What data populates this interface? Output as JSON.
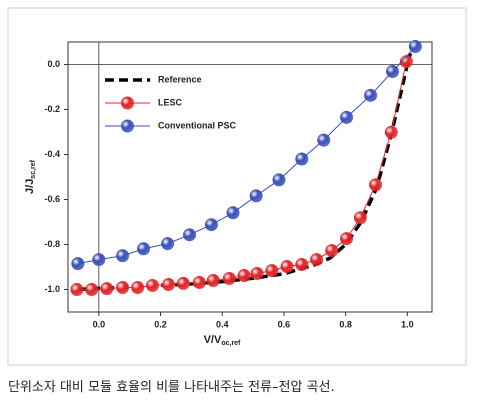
{
  "chart_data": {
    "type": "line",
    "xlabel": {
      "main": "V/V",
      "sub": "oc,ref"
    },
    "ylabel": {
      "main": "J/J",
      "sub": "sc,ref"
    },
    "xlim": [
      -0.1,
      1.08
    ],
    "ylim": [
      -1.1,
      0.1
    ],
    "xticks": [
      {
        "value": 0,
        "label": "0.0"
      },
      0.2,
      0.4,
      0.6,
      0.8,
      {
        "value": 1,
        "label": "1.0"
      }
    ],
    "yticks": [
      {
        "value": 0,
        "label": "0.0"
      },
      -0.2,
      -0.4,
      -0.6,
      -0.8,
      {
        "value": -1,
        "label": "-1.0"
      }
    ],
    "zero_lines": true,
    "legend": "upper left",
    "series": [
      {
        "name": "Reference",
        "color": "#000000",
        "style": "dashed",
        "x": [
          -0.07,
          0,
          0.1,
          0.2,
          0.3,
          0.4,
          0.5,
          0.6,
          0.7,
          0.75,
          0.8,
          0.85,
          0.9,
          0.95,
          1.0,
          1.01
        ],
        "values": [
          -1.0,
          -0.995,
          -0.99,
          -0.982,
          -0.975,
          -0.965,
          -0.95,
          -0.93,
          -0.89,
          -0.86,
          -0.8,
          -0.7,
          -0.55,
          -0.3,
          0.0,
          0.05
        ]
      },
      {
        "name": "LESC",
        "color": "#e0262a",
        "style": "marker",
        "x": [
          -0.071,
          -0.023,
          0.026,
          0.077,
          0.126,
          0.174,
          0.226,
          0.274,
          0.326,
          0.371,
          0.423,
          0.471,
          0.513,
          0.561,
          0.61,
          0.658,
          0.706,
          0.755,
          0.803,
          0.848,
          0.897,
          0.948,
          0.997
        ],
        "values": [
          -1.0,
          -1.0,
          -0.996,
          -0.991,
          -0.991,
          -0.982,
          -0.978,
          -0.973,
          -0.969,
          -0.96,
          -0.951,
          -0.938,
          -0.929,
          -0.916,
          -0.898,
          -0.889,
          -0.867,
          -0.827,
          -0.774,
          -0.681,
          -0.535,
          -0.301,
          0.013
        ]
      },
      {
        "name": "Conventional PSC",
        "color": "#3a50b8",
        "style": "marker",
        "x": [
          -0.068,
          0,
          0.077,
          0.145,
          0.223,
          0.294,
          0.365,
          0.435,
          0.51,
          0.584,
          0.658,
          0.729,
          0.803,
          0.881,
          0.952,
          1.026
        ],
        "values": [
          -0.885,
          -0.867,
          -0.85,
          -0.819,
          -0.796,
          -0.757,
          -0.712,
          -0.659,
          -0.584,
          -0.513,
          -0.42,
          -0.336,
          -0.235,
          -0.137,
          -0.031,
          0.08
        ]
      }
    ]
  },
  "caption": "단위소자 대비 모듈 효율의 비를 나타내주는 전류–전압 곡선."
}
